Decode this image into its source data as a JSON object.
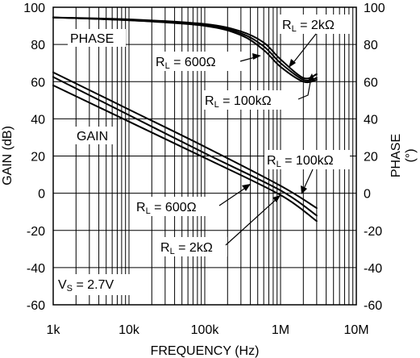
{
  "chart_data": {
    "type": "line",
    "xlabel": "FREQUENCY (Hz)",
    "ylabel": "GAIN (dB)",
    "y2label": "PHASE",
    "y2label_unit": "(°)",
    "x_scale": "log",
    "xlim": [
      1000,
      10000000
    ],
    "ylim": [
      -60,
      100
    ],
    "y2lim": [
      -60,
      100
    ],
    "x_ticks": [
      {
        "value": 1000,
        "label": "1k"
      },
      {
        "value": 10000,
        "label": "10k"
      },
      {
        "value": 100000,
        "label": "100k"
      },
      {
        "value": 1000000,
        "label": "1M"
      },
      {
        "value": 10000000,
        "label": "10M"
      }
    ],
    "y_ticks": [
      100,
      80,
      60,
      40,
      20,
      0,
      -20,
      -40,
      -60
    ],
    "y_tick_labels": [
      "100",
      "80",
      "60",
      "40",
      "20",
      "0",
      "-20",
      "-40",
      "-60"
    ],
    "y2_tick_labels": [
      "100",
      "80",
      "60",
      "40",
      "20",
      "0",
      "-20",
      "-40",
      "-60"
    ],
    "grid": true,
    "series": [
      {
        "name": "RL = 600Ω",
        "group": "gain",
        "x": [
          1000,
          10000,
          100000,
          1000000,
          3000000
        ],
        "y": [
          58.0,
          38.5,
          19.0,
          -1.0,
          -15.0
        ]
      },
      {
        "name": "RL = 2kΩ",
        "group": "gain",
        "x": [
          1000,
          10000,
          100000,
          1000000,
          3000000
        ],
        "y": [
          62.5,
          42.0,
          21.5,
          1.5,
          -12.0
        ]
      },
      {
        "name": "RL = 100kΩ",
        "group": "gain",
        "x": [
          1000,
          10000,
          100000,
          1000000,
          3000000
        ],
        "y": [
          65.0,
          45.0,
          25.0,
          4.0,
          -8.0
        ]
      },
      {
        "name": "RL = 600Ω",
        "group": "phase",
        "x": [
          1000,
          10000,
          100000,
          300000,
          600000,
          1000000,
          2000000,
          3000000
        ],
        "y": [
          94.5,
          93.0,
          90.0,
          85.0,
          77.0,
          68.0,
          60.0,
          61.0
        ]
      },
      {
        "name": "RL = 2kΩ",
        "group": "phase",
        "x": [
          1000,
          10000,
          100000,
          300000,
          600000,
          1000000,
          2000000,
          3000000
        ],
        "y": [
          94.5,
          93.0,
          90.5,
          86.0,
          79.0,
          70.0,
          61.0,
          62.0
        ]
      },
      {
        "name": "RL = 100kΩ",
        "group": "phase",
        "x": [
          1000,
          10000,
          100000,
          300000,
          600000,
          1000000,
          2000000,
          3000000
        ],
        "y": [
          94.5,
          93.5,
          91.0,
          87.0,
          81.0,
          72.0,
          62.0,
          64.0
        ]
      }
    ],
    "annotations": {
      "phase_label": "PHASE",
      "gain_label": "GAIN",
      "vs_label": "VS = 2.7V",
      "phase_rl_2k": "RL = 2kΩ",
      "phase_rl_600": "RL = 600Ω",
      "phase_rl_100k": "RL = 100kΩ",
      "gain_rl_100k": "RL = 100kΩ",
      "gain_rl_600": "RL = 600Ω",
      "gain_rl_2k": "RL = 2kΩ"
    }
  }
}
